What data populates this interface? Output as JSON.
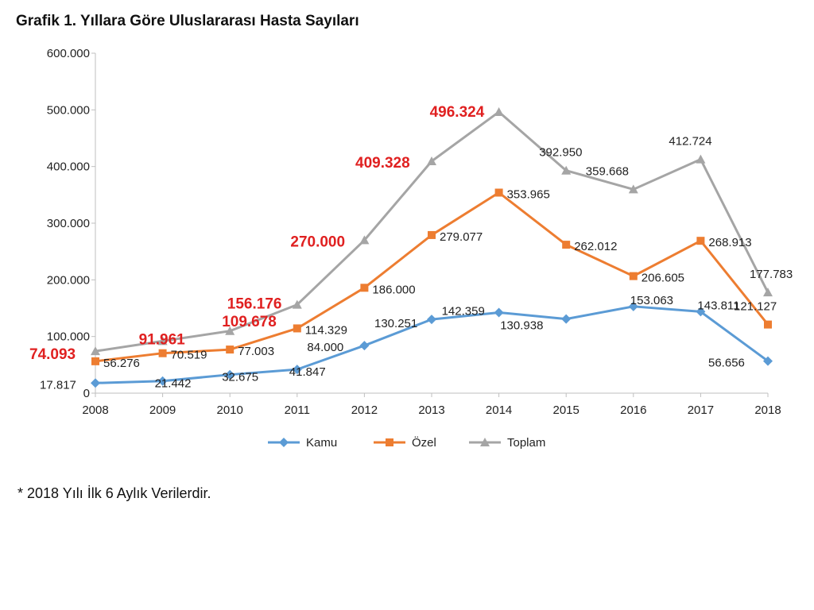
{
  "title": "Grafik 1. Yıllara Göre Uluslararası Hasta Sayıları",
  "footnote": "*  2018 Yılı İlk 6 Aylık Verilerdir.",
  "chart_data": {
    "type": "line",
    "categories": [
      "2008",
      "2009",
      "2010",
      "2011",
      "2012",
      "2013",
      "2014",
      "2015",
      "2016",
      "2017",
      "2018"
    ],
    "ylim": [
      0,
      600000
    ],
    "yticks": [
      0,
      100000,
      200000,
      300000,
      400000,
      500000,
      600000
    ],
    "ytick_labels": [
      "0",
      "100.000",
      "200.000",
      "300.000",
      "400.000",
      "500.000",
      "600.000"
    ],
    "grid": false,
    "legend_position": "bottom",
    "series": [
      {
        "name": "Kamu",
        "color": "#5b9bd5",
        "marker": "diamond",
        "values": [
          17817,
          21442,
          32675,
          41847,
          84000,
          130251,
          142359,
          130938,
          153063,
          143811,
          56656
        ],
        "labels": [
          "17.817",
          "21.442",
          "32.675",
          "41.847",
          "84.000",
          "130.251",
          "142.359",
          "130.938",
          "153.063",
          "143.811",
          "56.656"
        ]
      },
      {
        "name": "Özel",
        "color": "#ed7d31",
        "marker": "square",
        "values": [
          56276,
          70519,
          77003,
          114329,
          186000,
          279077,
          353965,
          262012,
          206605,
          268913,
          121127
        ],
        "labels": [
          "56.276",
          "70.519",
          "77.003",
          "114.329",
          "186.000",
          "279.077",
          "353.965",
          "262.012",
          "206.605",
          "268.913",
          "121.127"
        ]
      },
      {
        "name": "Toplam",
        "color": "#a5a5a5",
        "marker": "triangle",
        "values": [
          74093,
          91961,
          109678,
          156176,
          270000,
          409328,
          496324,
          392950,
          359668,
          412724,
          177783
        ],
        "labels": [
          "74.093",
          "91.961",
          "109.678",
          "156.176",
          "270.000",
          "409.328",
          "496.324",
          "392.950",
          "359.668",
          "412.724",
          "177.783"
        ],
        "label_color": "#e02020",
        "highlight_count": 7
      }
    ]
  }
}
